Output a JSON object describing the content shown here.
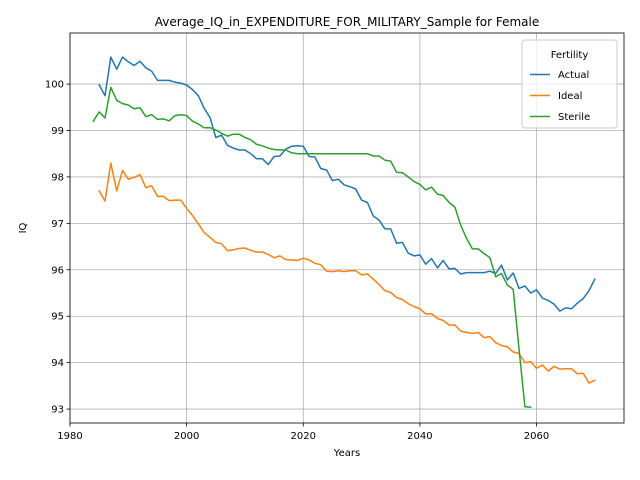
{
  "chart_data": {
    "type": "line",
    "title": "Average_IQ_in_EXPENDITURE_FOR_MILITARY_Sample for Female",
    "xlabel": "Years",
    "ylabel": "IQ",
    "xlim": [
      1980,
      2075
    ],
    "ylim": [
      92.7,
      101.1
    ],
    "xticks": [
      1980,
      2000,
      2020,
      2040,
      2060
    ],
    "yticks": [
      93,
      94,
      95,
      96,
      97,
      98,
      99,
      100
    ],
    "grid": true,
    "legend": {
      "title": "Fertility",
      "position": "top-right"
    },
    "series": [
      {
        "name": "Actual",
        "color": "#1f77b4",
        "x": [
          1985,
          1986,
          1987,
          1988,
          1989,
          1990,
          1991,
          1992,
          1993,
          1994,
          1995,
          1996,
          1997,
          1998,
          1999,
          2000,
          2001,
          2002,
          2003,
          2004,
          2005,
          2006,
          2007,
          2008,
          2009,
          2010,
          2011,
          2012,
          2013,
          2014,
          2015,
          2016,
          2017,
          2018,
          2019,
          2020,
          2021,
          2022,
          2023,
          2024,
          2025,
          2026,
          2027,
          2028,
          2029,
          2030,
          2031,
          2032,
          2033,
          2034,
          2035,
          2036,
          2037,
          2038,
          2039,
          2040,
          2041,
          2042,
          2043,
          2044,
          2045,
          2046,
          2047,
          2048,
          2049,
          2050,
          2051,
          2052,
          2053,
          2054,
          2055,
          2056,
          2057,
          2058,
          2059,
          2060,
          2061,
          2062,
          2063,
          2064,
          2065,
          2066,
          2067,
          2068,
          2069,
          2070
        ],
        "values": [
          99.98,
          99.75,
          100.58,
          100.32,
          100.58,
          100.48,
          100.4,
          100.49,
          100.35,
          100.28,
          100.08,
          100.08,
          100.08,
          100.04,
          100.02,
          99.98,
          99.88,
          99.75,
          99.48,
          99.28,
          98.85,
          98.9,
          98.68,
          98.62,
          98.58,
          98.58,
          98.5,
          98.39,
          98.39,
          98.27,
          98.44,
          98.45,
          98.6,
          98.66,
          98.67,
          98.66,
          98.44,
          98.43,
          98.18,
          98.15,
          97.92,
          97.95,
          97.83,
          97.79,
          97.74,
          97.5,
          97.45,
          97.16,
          97.07,
          96.88,
          96.88,
          96.57,
          96.59,
          96.36,
          96.3,
          96.32,
          96.12,
          96.24,
          96.04,
          96.2,
          96.02,
          96.03,
          95.91,
          95.94,
          95.94,
          95.94,
          95.94,
          95.97,
          95.92,
          96.1,
          95.78,
          95.93,
          95.6,
          95.65,
          95.5,
          95.57,
          95.39,
          95.34,
          95.26,
          95.11,
          95.18,
          95.16,
          95.28,
          95.38,
          95.55,
          95.8
        ]
      },
      {
        "name": "Ideal",
        "color": "#ff7f0e",
        "x": [
          1985,
          1986,
          1987,
          1988,
          1989,
          1990,
          1991,
          1992,
          1993,
          1994,
          1995,
          1996,
          1997,
          1998,
          1999,
          2000,
          2001,
          2002,
          2003,
          2004,
          2005,
          2006,
          2007,
          2008,
          2009,
          2010,
          2011,
          2012,
          2013,
          2014,
          2015,
          2016,
          2017,
          2018,
          2019,
          2020,
          2021,
          2022,
          2023,
          2024,
          2025,
          2026,
          2027,
          2028,
          2029,
          2030,
          2031,
          2032,
          2033,
          2034,
          2035,
          2036,
          2037,
          2038,
          2039,
          2040,
          2041,
          2042,
          2043,
          2044,
          2045,
          2046,
          2047,
          2048,
          2049,
          2050,
          2051,
          2052,
          2053,
          2054,
          2055,
          2056,
          2057,
          2058,
          2059,
          2060,
          2061,
          2062,
          2063,
          2064,
          2065,
          2066,
          2067,
          2068,
          2069,
          2070
        ],
        "values": [
          97.7,
          97.48,
          98.3,
          97.7,
          98.14,
          97.95,
          97.99,
          98.05,
          97.77,
          97.81,
          97.58,
          97.58,
          97.49,
          97.5,
          97.5,
          97.32,
          97.17,
          96.99,
          96.8,
          96.7,
          96.59,
          96.56,
          96.41,
          96.43,
          96.46,
          96.47,
          96.42,
          96.38,
          96.38,
          96.33,
          96.26,
          96.3,
          96.22,
          96.21,
          96.2,
          96.25,
          96.21,
          96.14,
          96.11,
          95.97,
          95.96,
          95.98,
          95.96,
          95.98,
          95.98,
          95.89,
          95.91,
          95.8,
          95.68,
          95.55,
          95.51,
          95.4,
          95.36,
          95.27,
          95.21,
          95.16,
          95.05,
          95.05,
          94.95,
          94.91,
          94.81,
          94.81,
          94.68,
          94.65,
          94.63,
          94.65,
          94.54,
          94.56,
          94.43,
          94.37,
          94.34,
          94.23,
          94.2,
          94.0,
          94.02,
          93.88,
          93.95,
          93.82,
          93.92,
          93.86,
          93.87,
          93.87,
          93.76,
          93.77,
          93.56,
          93.62
        ]
      },
      {
        "name": "Sterile",
        "color": "#2ca02c",
        "x": [
          1984,
          1985,
          1986,
          1987,
          1988,
          1989,
          1990,
          1991,
          1992,
          1993,
          1994,
          1995,
          1996,
          1997,
          1998,
          1999,
          2000,
          2001,
          2002,
          2003,
          2004,
          2005,
          2006,
          2007,
          2008,
          2009,
          2010,
          2011,
          2012,
          2013,
          2014,
          2015,
          2016,
          2017,
          2018,
          2019,
          2020,
          2021,
          2022,
          2023,
          2024,
          2025,
          2026,
          2027,
          2028,
          2029,
          2030,
          2031,
          2032,
          2033,
          2034,
          2035,
          2036,
          2037,
          2038,
          2039,
          2040,
          2041,
          2042,
          2043,
          2044,
          2045,
          2046,
          2047,
          2048,
          2049,
          2050,
          2051,
          2052,
          2053,
          2054,
          2055,
          2056,
          2057,
          2058,
          2059
        ],
        "values": [
          99.2,
          99.4,
          99.27,
          99.93,
          99.65,
          99.58,
          99.55,
          99.47,
          99.49,
          99.3,
          99.34,
          99.24,
          99.25,
          99.21,
          99.32,
          99.34,
          99.32,
          99.2,
          99.14,
          99.06,
          99.06,
          99.01,
          98.94,
          98.88,
          98.92,
          98.92,
          98.85,
          98.8,
          98.7,
          98.67,
          98.62,
          98.59,
          98.58,
          98.58,
          98.52,
          98.5,
          98.5,
          98.5,
          98.5,
          98.5,
          98.5,
          98.5,
          98.5,
          98.5,
          98.5,
          98.5,
          98.5,
          98.5,
          98.45,
          98.45,
          98.36,
          98.34,
          98.1,
          98.09,
          98.0,
          97.9,
          97.84,
          97.72,
          97.78,
          97.63,
          97.6,
          97.45,
          97.35,
          96.96,
          96.68,
          96.45,
          96.45,
          96.35,
          96.26,
          95.85,
          95.92,
          95.67,
          95.58,
          94.3,
          93.05,
          93.04
        ]
      }
    ]
  }
}
